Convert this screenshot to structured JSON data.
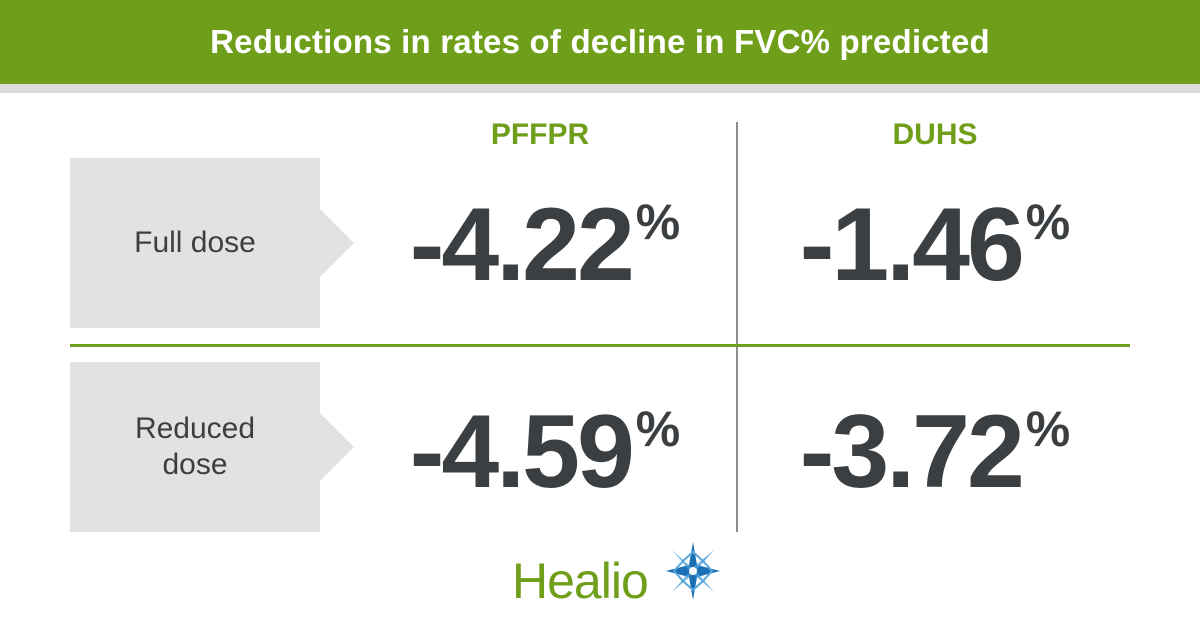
{
  "header": {
    "title": "Reductions in rates of decline in FVC% predicted"
  },
  "chart_data": {
    "type": "table",
    "title": "Reductions in rates of decline in FVC% predicted",
    "columns": [
      "PFFPR",
      "DUHS"
    ],
    "rows": [
      {
        "label": "Full dose",
        "label_lines": [
          "Full dose"
        ],
        "values": [
          "-4.22",
          "-1.46"
        ]
      },
      {
        "label": "Reduced dose",
        "label_lines": [
          "Reduced",
          "dose"
        ],
        "values": [
          "-4.59",
          "-3.72"
        ]
      }
    ],
    "unit": "%"
  },
  "colors": {
    "accent": "#6f9f1a",
    "text": "#3b3f42",
    "label_bg": "#e2e2e2",
    "logo_blue": "#1a6fb5"
  },
  "logo": {
    "text": "Healio",
    "icon": "star-burst-icon"
  }
}
